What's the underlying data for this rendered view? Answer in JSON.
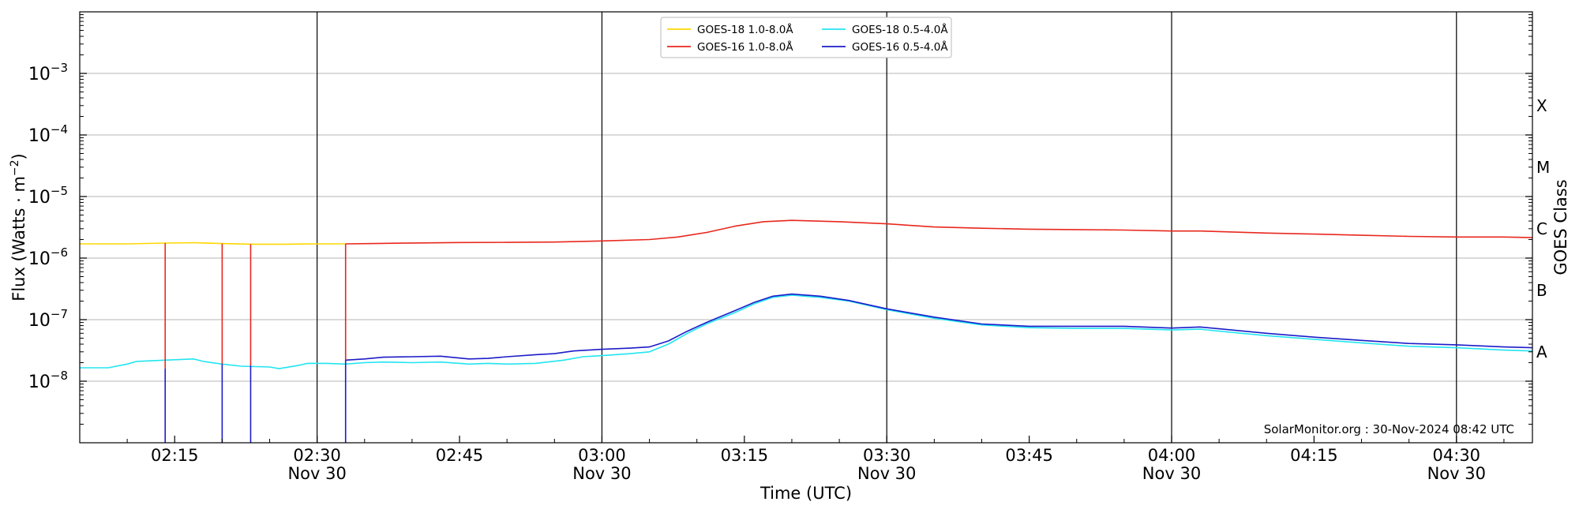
{
  "chart_data": {
    "type": "line",
    "title": "",
    "xlabel": "Time (UTC)",
    "ylabel": "Flux (Watts · m",
    "ylabel_sup": "−2",
    "ylabel_close": ")",
    "right_label": "GOES Class",
    "x_range": [
      "02:05",
      "04:38"
    ],
    "y_range": [
      1e-09,
      0.01
    ],
    "y_scale": "log",
    "y_ticks": [
      {
        "value": 1e-08,
        "base": "10",
        "exp": "−8"
      },
      {
        "value": 1e-07,
        "base": "10",
        "exp": "−7"
      },
      {
        "value": 1e-06,
        "base": "10",
        "exp": "−6"
      },
      {
        "value": 1e-05,
        "base": "10",
        "exp": "−5"
      },
      {
        "value": 0.0001,
        "base": "10",
        "exp": "−4"
      },
      {
        "value": 0.001,
        "base": "10",
        "exp": "−3"
      }
    ],
    "x_ticks": [
      {
        "time": "02:15",
        "label": "02:15",
        "date": ""
      },
      {
        "time": "02:30",
        "label": "02:30",
        "date": "Nov 30"
      },
      {
        "time": "02:45",
        "label": "02:45",
        "date": ""
      },
      {
        "time": "03:00",
        "label": "03:00",
        "date": "Nov 30"
      },
      {
        "time": "03:15",
        "label": "03:15",
        "date": ""
      },
      {
        "time": "03:30",
        "label": "03:30",
        "date": "Nov 30"
      },
      {
        "time": "03:45",
        "label": "03:45",
        "date": ""
      },
      {
        "time": "04:00",
        "label": "04:00",
        "date": "Nov 30"
      },
      {
        "time": "04:15",
        "label": "04:15",
        "date": ""
      },
      {
        "time": "04:30",
        "label": "04:30",
        "date": "Nov 30"
      }
    ],
    "vertical_lines": [
      "02:30",
      "03:00",
      "03:30",
      "04:00",
      "04:30"
    ],
    "grid": "horizontal at decades",
    "class_labels": [
      {
        "label": "A",
        "value": 3e-08
      },
      {
        "label": "B",
        "value": 3e-07
      },
      {
        "label": "C",
        "value": 3e-06
      },
      {
        "label": "M",
        "value": 3e-05
      },
      {
        "label": "X",
        "value": 0.0003
      }
    ],
    "legend_position": "top-center",
    "annotation": "SolarMonitor.org : 30-Nov-2024 08:42 UTC",
    "series": [
      {
        "name": "GOES-18 1.0-8.0Å",
        "color": "#ffd700",
        "points": [
          [
            "02:05",
            1.7e-06
          ],
          [
            "02:10",
            1.7e-06
          ],
          [
            "02:14",
            1.75e-06
          ],
          [
            "02:17",
            1.78e-06
          ],
          [
            "02:20",
            1.72e-06
          ],
          [
            "02:23",
            1.68e-06
          ],
          [
            "02:27",
            1.68e-06
          ],
          [
            "02:30",
            1.7e-06
          ],
          [
            "02:33",
            1.7e-06
          ]
        ]
      },
      {
        "name": "GOES-16 1.0-8.0Å",
        "color": "#e8281e",
        "points": [
          [
            "02:33",
            1.7e-06
          ],
          [
            "02:36",
            1.72e-06
          ],
          [
            "02:40",
            1.76e-06
          ],
          [
            "02:45",
            1.79e-06
          ],
          [
            "02:50",
            1.8e-06
          ],
          [
            "02:55",
            1.82e-06
          ],
          [
            "03:00",
            1.9e-06
          ],
          [
            "03:05",
            2e-06
          ],
          [
            "03:08",
            2.2e-06
          ],
          [
            "03:11",
            2.6e-06
          ],
          [
            "03:14",
            3.3e-06
          ],
          [
            "03:17",
            3.9e-06
          ],
          [
            "03:20",
            4.1e-06
          ],
          [
            "03:25",
            3.9e-06
          ],
          [
            "03:30",
            3.6e-06
          ],
          [
            "03:35",
            3.2e-06
          ],
          [
            "03:40",
            3.05e-06
          ],
          [
            "03:45",
            2.95e-06
          ],
          [
            "03:50",
            2.9e-06
          ],
          [
            "03:55",
            2.85e-06
          ],
          [
            "04:00",
            2.75e-06
          ],
          [
            "04:03",
            2.75e-06
          ],
          [
            "04:05",
            2.7e-06
          ],
          [
            "04:10",
            2.55e-06
          ],
          [
            "04:15",
            2.45e-06
          ],
          [
            "04:20",
            2.35e-06
          ],
          [
            "04:25",
            2.25e-06
          ],
          [
            "04:30",
            2.2e-06
          ],
          [
            "04:35",
            2.2e-06
          ],
          [
            "04:38",
            2.15e-06
          ]
        ]
      },
      {
        "name": "GOES-18 0.5-4.0Å",
        "color": "#22e5f0",
        "points": [
          [
            "02:05",
            1.65e-08
          ],
          [
            "02:08",
            1.65e-08
          ],
          [
            "02:10",
            1.9e-08
          ],
          [
            "02:11",
            2.1e-08
          ],
          [
            "02:14",
            2.2e-08
          ],
          [
            "02:17",
            2.3e-08
          ],
          [
            "02:18",
            2.1e-08
          ],
          [
            "02:20",
            1.9e-08
          ],
          [
            "02:22",
            1.75e-08
          ],
          [
            "02:25",
            1.7e-08
          ],
          [
            "02:26",
            1.6e-08
          ],
          [
            "02:28",
            1.8e-08
          ],
          [
            "02:29",
            1.95e-08
          ],
          [
            "02:31",
            1.95e-08
          ],
          [
            "02:33",
            1.9e-08
          ],
          [
            "02:35",
            2e-08
          ],
          [
            "02:37",
            2.05e-08
          ],
          [
            "02:40",
            2e-08
          ],
          [
            "02:43",
            2.05e-08
          ],
          [
            "02:46",
            1.9e-08
          ],
          [
            "02:48",
            1.95e-08
          ],
          [
            "02:50",
            1.9e-08
          ],
          [
            "02:53",
            1.95e-08
          ],
          [
            "02:56",
            2.2e-08
          ],
          [
            "02:58",
            2.5e-08
          ],
          [
            "03:00",
            2.6e-08
          ],
          [
            "03:03",
            2.8e-08
          ],
          [
            "03:05",
            3e-08
          ],
          [
            "03:07",
            4e-08
          ],
          [
            "03:09",
            6e-08
          ],
          [
            "03:11",
            8.5e-08
          ],
          [
            "03:14",
            1.3e-07
          ],
          [
            "03:16",
            1.8e-07
          ],
          [
            "03:18",
            2.3e-07
          ],
          [
            "03:20",
            2.5e-07
          ],
          [
            "03:23",
            2.3e-07
          ],
          [
            "03:26",
            2e-07
          ],
          [
            "03:30",
            1.45e-07
          ],
          [
            "03:35",
            1.05e-07
          ],
          [
            "03:40",
            8.2e-08
          ],
          [
            "03:45",
            7.4e-08
          ],
          [
            "03:50",
            7.2e-08
          ],
          [
            "03:55",
            7.2e-08
          ],
          [
            "04:00",
            6.8e-08
          ],
          [
            "04:03",
            7e-08
          ],
          [
            "04:05",
            6.5e-08
          ],
          [
            "04:10",
            5.5e-08
          ],
          [
            "04:15",
            4.8e-08
          ],
          [
            "04:20",
            4.2e-08
          ],
          [
            "04:25",
            3.7e-08
          ],
          [
            "04:30",
            3.5e-08
          ],
          [
            "04:35",
            3.2e-08
          ],
          [
            "04:38",
            3.1e-08
          ]
        ]
      },
      {
        "name": "GOES-16 0.5-4.0Å",
        "color": "#1c1cc8",
        "points": [
          [
            "02:33",
            2.2e-08
          ],
          [
            "02:35",
            2.3e-08
          ],
          [
            "02:37",
            2.45e-08
          ],
          [
            "02:40",
            2.5e-08
          ],
          [
            "02:43",
            2.55e-08
          ],
          [
            "02:46",
            2.3e-08
          ],
          [
            "02:48",
            2.35e-08
          ],
          [
            "02:50",
            2.5e-08
          ],
          [
            "02:53",
            2.7e-08
          ],
          [
            "02:55",
            2.8e-08
          ],
          [
            "02:57",
            3.1e-08
          ],
          [
            "03:00",
            3.3e-08
          ],
          [
            "03:03",
            3.45e-08
          ],
          [
            "03:05",
            3.6e-08
          ],
          [
            "03:07",
            4.5e-08
          ],
          [
            "03:09",
            6.5e-08
          ],
          [
            "03:11",
            9e-08
          ],
          [
            "03:14",
            1.4e-07
          ],
          [
            "03:16",
            1.9e-07
          ],
          [
            "03:18",
            2.4e-07
          ],
          [
            "03:20",
            2.6e-07
          ],
          [
            "03:23",
            2.4e-07
          ],
          [
            "03:26",
            2.05e-07
          ],
          [
            "03:30",
            1.5e-07
          ],
          [
            "03:35",
            1.1e-07
          ],
          [
            "03:40",
            8.5e-08
          ],
          [
            "03:45",
            7.8e-08
          ],
          [
            "03:50",
            7.8e-08
          ],
          [
            "03:55",
            7.8e-08
          ],
          [
            "04:00",
            7.3e-08
          ],
          [
            "04:03",
            7.6e-08
          ],
          [
            "04:05",
            7.1e-08
          ],
          [
            "04:10",
            6e-08
          ],
          [
            "04:15",
            5.2e-08
          ],
          [
            "04:20",
            4.6e-08
          ],
          [
            "04:25",
            4.1e-08
          ],
          [
            "04:30",
            3.9e-08
          ],
          [
            "04:35",
            3.6e-08
          ],
          [
            "04:38",
            3.5e-08
          ]
        ]
      }
    ],
    "dropouts": [
      {
        "time": "02:14",
        "red_top": 1.75e-06,
        "red_bottom": 1.6e-08,
        "blue_top": 1.6e-08
      },
      {
        "time": "02:20",
        "red_top": 1.72e-06,
        "red_bottom": 1.9e-08,
        "blue_top": 1.9e-08
      },
      {
        "time": "02:23",
        "red_top": 1.68e-06,
        "red_bottom": 1.8e-08,
        "blue_top": 1.8e-08
      },
      {
        "time": "02:33",
        "red_top": 1.7e-06,
        "red_bottom": 2.2e-08,
        "blue_top": 2.2e-08
      }
    ]
  }
}
